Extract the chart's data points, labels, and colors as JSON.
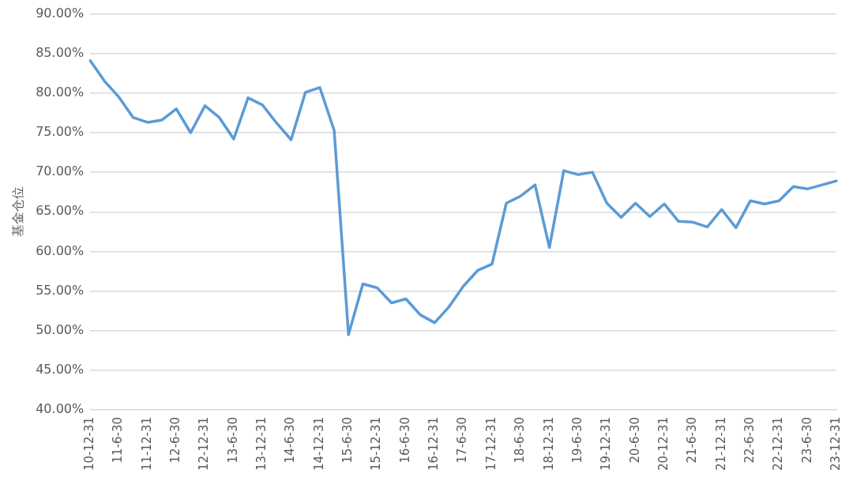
{
  "chart_data": {
    "type": "line",
    "ylabel": "基金仓位",
    "categories": [
      "10-12-31",
      null,
      "11-6-30",
      null,
      "11-12-31",
      null,
      "12-6-30",
      null,
      "12-12-31",
      null,
      "13-6-30",
      null,
      "13-12-31",
      null,
      "14-6-30",
      null,
      "14-12-31",
      null,
      "15-6-30",
      null,
      "15-12-31",
      null,
      "16-6-30",
      null,
      "16-12-31",
      null,
      "17-6-30",
      null,
      "17-12-31",
      null,
      "18-6-30",
      null,
      "18-12-31",
      null,
      "19-6-30",
      null,
      "19-12-31",
      null,
      "20-6-30",
      null,
      "20-12-31",
      null,
      "21-6-30",
      null,
      "21-12-31",
      null,
      "22-6-30",
      null,
      "22-12-31",
      null,
      "23-6-30",
      null,
      "23-12-31"
    ],
    "series": [
      {
        "color": "#5b9bd5",
        "values": [
          84.1,
          81.5,
          79.5,
          76.9,
          76.3,
          76.6,
          78.0,
          75.0,
          78.4,
          76.9,
          74.2,
          79.4,
          78.5,
          76.2,
          74.1,
          80.1,
          80.7,
          75.3,
          49.5,
          55.9,
          55.4,
          53.5,
          54.0,
          52.0,
          51.0,
          53.0,
          55.6,
          57.6,
          58.4,
          66.1,
          67.0,
          68.4,
          60.5,
          70.2,
          69.7,
          70.0,
          66.1,
          64.3,
          66.1,
          64.4,
          66.0,
          63.8,
          63.7,
          63.1,
          65.3,
          63.0,
          66.4,
          66.0,
          66.4,
          68.2,
          67.9,
          68.4,
          68.9
        ]
      }
    ],
    "ylim": [
      40,
      90
    ],
    "yticks": [
      {
        "value": 40,
        "label": "40.00%"
      },
      {
        "value": 45,
        "label": "45.00%"
      },
      {
        "value": 50,
        "label": "50.00%"
      },
      {
        "value": 55,
        "label": "55.00%"
      },
      {
        "value": 60,
        "label": "60.00%"
      },
      {
        "value": 65,
        "label": "65.00%"
      },
      {
        "value": 70,
        "label": "70.00%"
      },
      {
        "value": 75,
        "label": "75.00%"
      },
      {
        "value": 80,
        "label": "80.00%"
      },
      {
        "value": 85,
        "label": "85.00%"
      },
      {
        "value": 90,
        "label": "90.00%"
      }
    ],
    "grid": "y",
    "legend": false,
    "marker": "none",
    "line_style": "solid"
  }
}
